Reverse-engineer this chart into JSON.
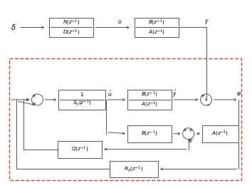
{
  "fig_width": 3.54,
  "fig_height": 2.64,
  "dpi": 100,
  "bg_color": "#ffffff",
  "box_color": "#ffffff",
  "line_color": "#555555",
  "dash_box_color": "#cc4444",
  "box_edge": "#555555",
  "lw": 0.7,
  "fs": 5.5,
  "circle_r": 0.018
}
